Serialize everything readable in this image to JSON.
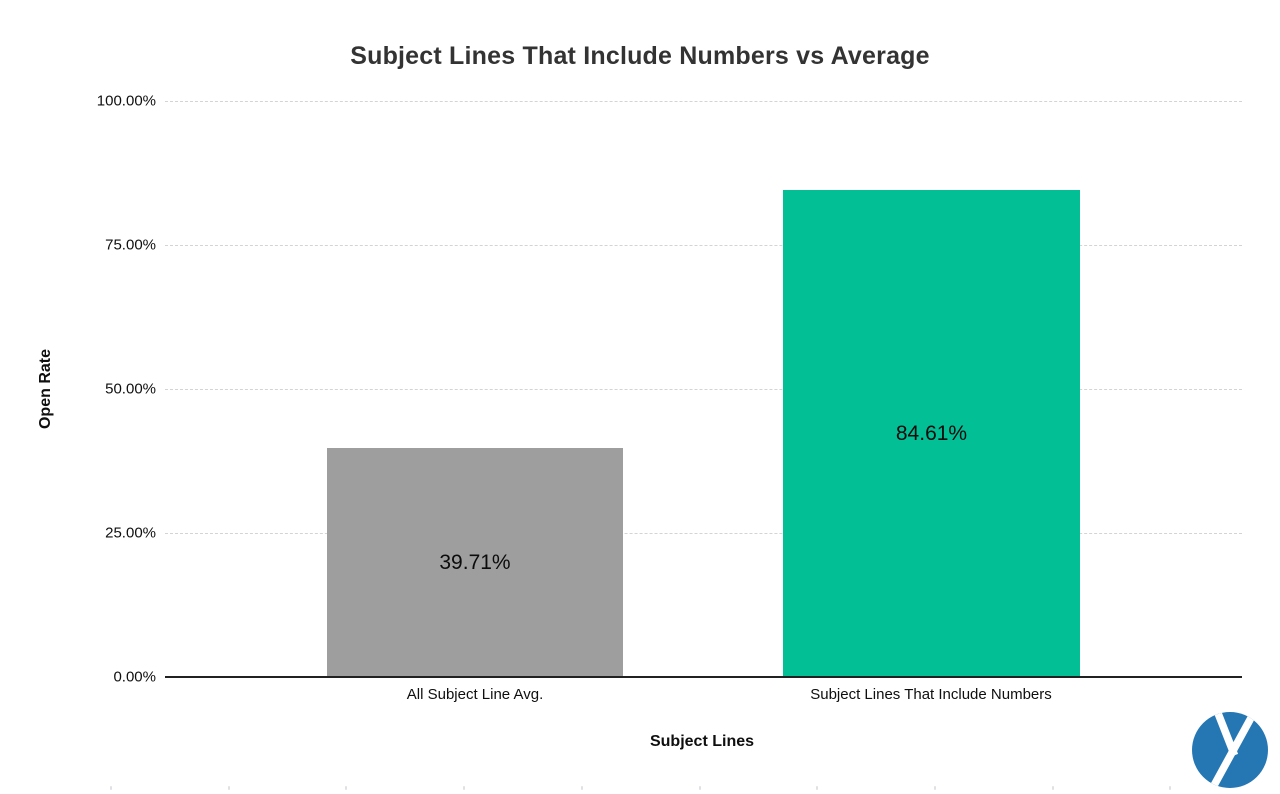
{
  "chart_data": {
    "type": "bar",
    "title": "Subject Lines That Include Numbers vs Average",
    "xlabel": "Subject Lines",
    "ylabel": "Open Rate",
    "categories": [
      "All Subject Line Avg.",
      "Subject Lines That Include Numbers"
    ],
    "series": [
      {
        "name": "Open Rate",
        "values": [
          39.71,
          84.61
        ]
      }
    ],
    "values": [
      39.71,
      84.61
    ],
    "value_labels": [
      "39.71%",
      "84.61%"
    ],
    "bar_colors": [
      "#9e9e9e",
      "#03bf96"
    ],
    "ylim": [
      0,
      100
    ],
    "ytick_labels": [
      "0.00%",
      "25.00%",
      "50.00%",
      "75.00%",
      "100.00%"
    ],
    "ytick_values": [
      0,
      25,
      50,
      75,
      100
    ],
    "grid": true,
    "gridline_style": "dashed",
    "legend_position": "none",
    "title_color": "#333333",
    "gridline_color": "#d4d4d4",
    "axis_line_color": "#212121",
    "label_color": "#0f0f0f"
  },
  "branding": {
    "logo_icon": "yesware-y-logo-icon",
    "logo_color": "#2577b4"
  }
}
